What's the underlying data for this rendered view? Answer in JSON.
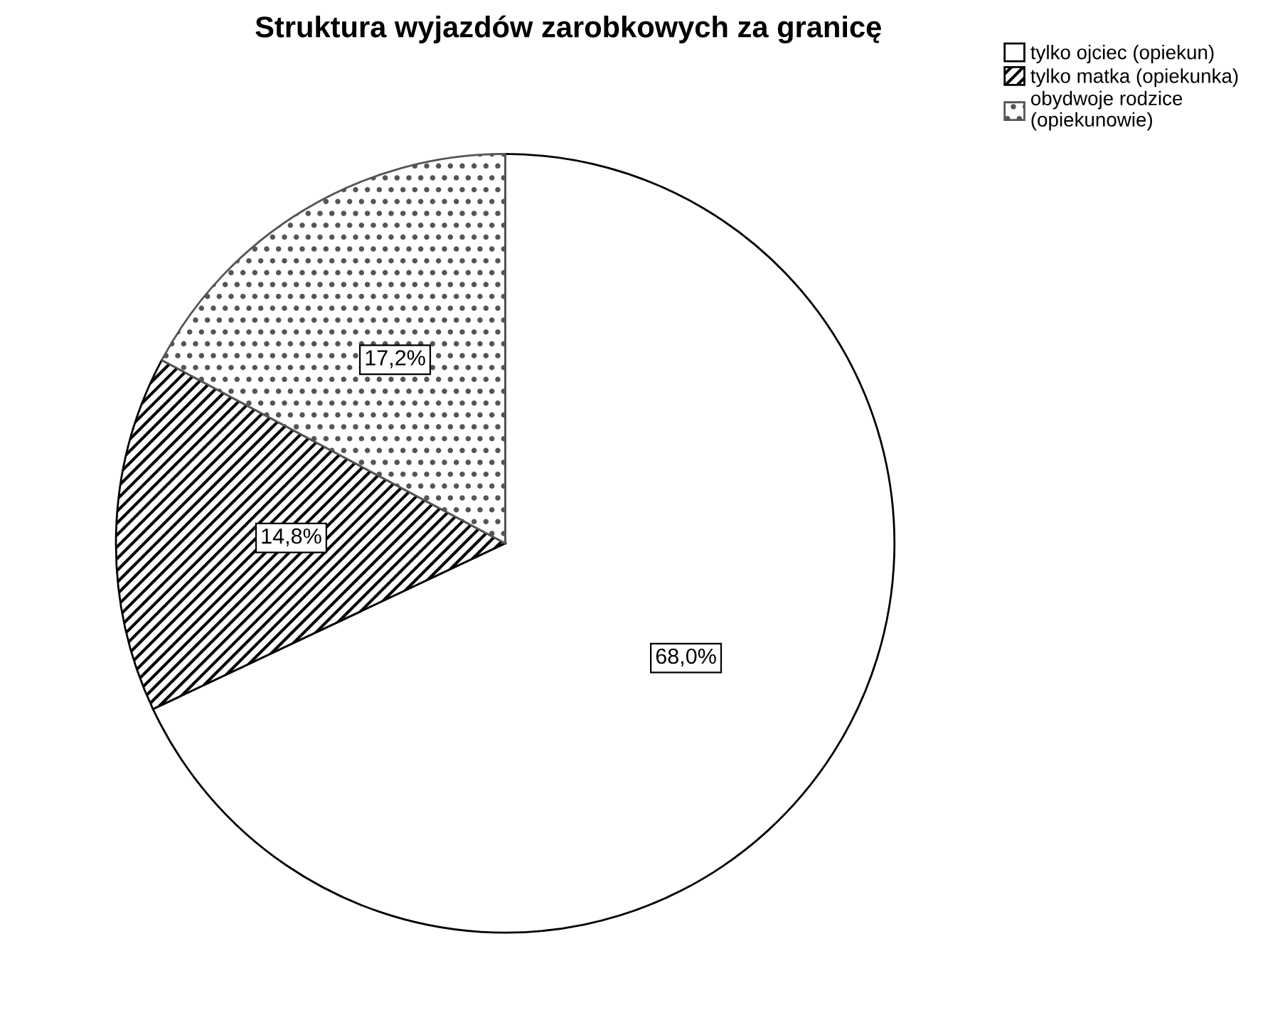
{
  "chart_data": {
    "type": "pie",
    "title": "Struktura wyjazdów zarobkowych za granicę",
    "categories": [
      "tylko ojciec (opiekun)",
      "tylko matka (opiekunka)",
      "obydwoje rodzice\n(opiekunowie)"
    ],
    "values": [
      68.0,
      14.8,
      17.2
    ],
    "value_labels": [
      "68,0%",
      "14,8%",
      "17,2%"
    ],
    "colors": [
      "#ffffff",
      "#000000",
      "#555555"
    ],
    "legend": "top right"
  }
}
